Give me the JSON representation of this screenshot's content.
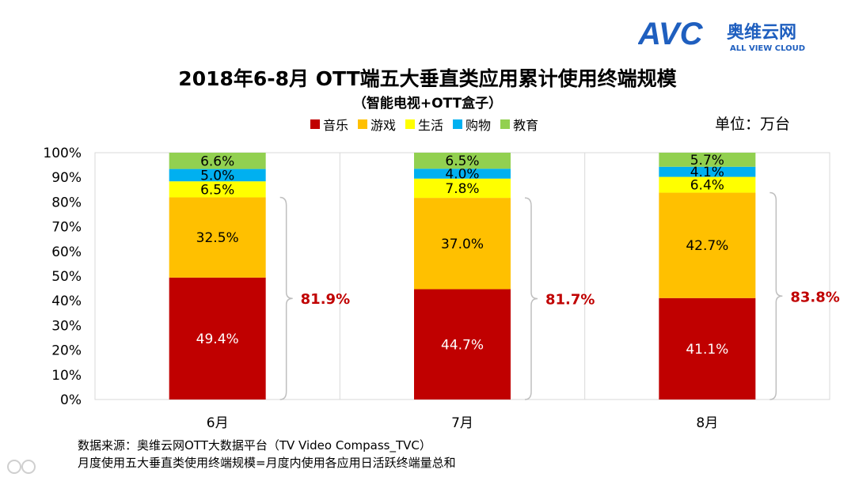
{
  "logo": {
    "text_cn": "奥维云网",
    "text_en": "ALL VIEW CLOUD",
    "mark": "AVC"
  },
  "unit_label": "单位：万台",
  "footer": {
    "source": "数据来源：奥维云网OTT大数据平台（TV Video Compass_TVC）",
    "definition": "月度使用五大垂直类使用终端规模=月度内使用各应用日活跃终端量总和"
  },
  "colors": {
    "音乐": "#C00000",
    "游戏": "#FFC000",
    "生活": "#FFFF00",
    "购物": "#00B0F0",
    "教育": "#92D050",
    "bracket_label": "#C00000"
  },
  "chart_data": {
    "type": "bar",
    "stacked": true,
    "title": "2018年6-8月 OTT端五大垂直类应用累计使用终端规模",
    "subtitle": "（智能电视+OTT盒子）",
    "categories": [
      "6月",
      "7月",
      "8月"
    ],
    "series": [
      {
        "name": "音乐",
        "values": [
          49.4,
          44.7,
          41.1
        ],
        "labels": [
          "49.4%",
          "44.7%",
          "41.1%"
        ]
      },
      {
        "name": "游戏",
        "values": [
          32.5,
          37.0,
          42.7
        ],
        "labels": [
          "32.5%",
          "37.0%",
          "42.7%"
        ]
      },
      {
        "name": "生活",
        "values": [
          6.5,
          7.8,
          6.4
        ],
        "labels": [
          "6.5%",
          "7.8%",
          "6.4%"
        ]
      },
      {
        "name": "购物",
        "values": [
          5.0,
          4.0,
          4.1
        ],
        "labels": [
          "5.0%",
          "4.0%",
          "4.1%"
        ]
      },
      {
        "name": "教育",
        "values": [
          6.6,
          6.5,
          5.7
        ],
        "labels": [
          "6.6%",
          "6.5%",
          "5.7%"
        ]
      }
    ],
    "bracket_totals": [
      "81.9%",
      "81.7%",
      "83.8%"
    ],
    "y_ticks": [
      "0%",
      "10%",
      "20%",
      "30%",
      "40%",
      "50%",
      "60%",
      "70%",
      "80%",
      "90%",
      "100%"
    ],
    "ylim": [
      0,
      100
    ],
    "grid": "vertical",
    "legend_position": "top"
  }
}
